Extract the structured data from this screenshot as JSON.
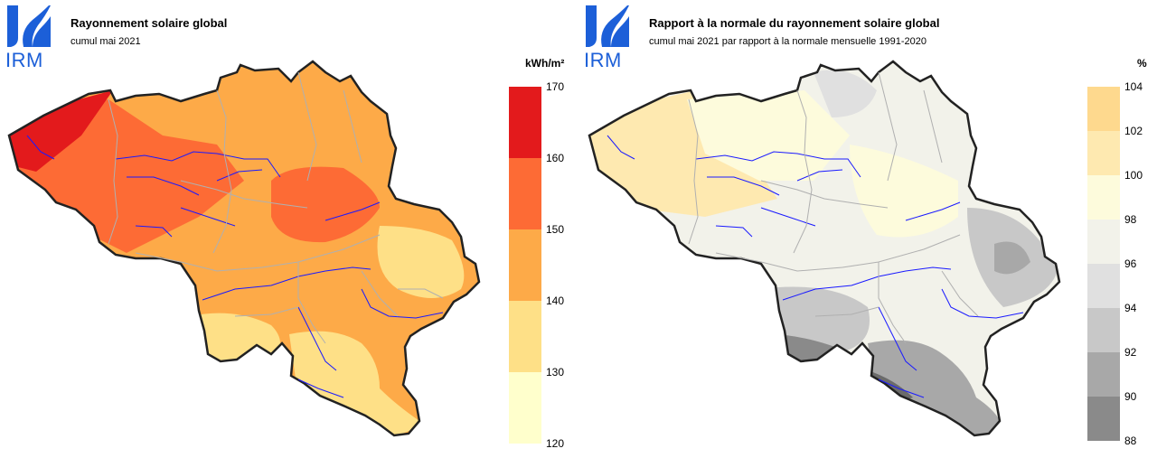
{
  "panels": [
    {
      "logo_text": "IRM",
      "title": "Rayonnement solaire global",
      "subtitle": "cumul mai 2021",
      "unit": "kWh/m²",
      "legend": {
        "ticks": [
          "170",
          "160",
          "150",
          "140",
          "130",
          "120"
        ],
        "colors": [
          "#e31a1c",
          "#fd6b35",
          "#fdaa48",
          "#fee087",
          "#ffffcc"
        ]
      }
    },
    {
      "logo_text": "IRM",
      "title": "Rapport à la normale du rayonnement solaire global",
      "subtitle": "cumul mai 2021 par rapport à la normale mensuelle 1991-2020",
      "unit": "%",
      "legend": {
        "ticks": [
          "104",
          "102",
          "100",
          "98",
          "96",
          "94",
          "92",
          "90",
          "88"
        ],
        "colors": [
          "#fed98e",
          "#fee9b0",
          "#fdfbdc",
          "#f2f2ea",
          "#e0e0e0",
          "#c8c8c8",
          "#a8a8a8",
          "#8a8a8a",
          "#6b6b6b"
        ]
      }
    }
  ],
  "icons": {
    "logo": "irm-logo-icon"
  }
}
